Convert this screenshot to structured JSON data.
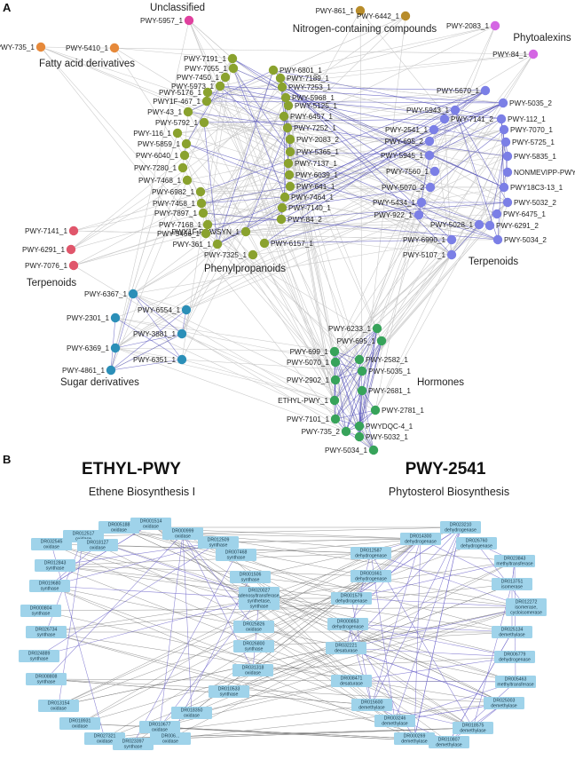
{
  "panel_a": {
    "label": "A",
    "colors": {
      "unclassified": "#e0409e",
      "fatty_acid": "#e6893a",
      "nitrogen": "#b88c2a",
      "phytoalexin": "#d466e3",
      "phenylpropanoid": "#8aa22e",
      "terpenoid_blue": "#7b7fe6",
      "terpenoid_red": "#e0566b",
      "sugar": "#2b8fb8",
      "hormone": "#37a35a",
      "edge_gray": "#c8c8c8",
      "edge_blue": "#4a47b8"
    },
    "group_labels": [
      {
        "id": "unclassified",
        "text": "Unclassified"
      },
      {
        "id": "nitrogen",
        "text": "Nitrogen-containing compounds"
      },
      {
        "id": "phytoalexins",
        "text": "Phytoalexins"
      },
      {
        "id": "fatty",
        "text": "Fatty acid derivatives"
      },
      {
        "id": "phenyl",
        "text": "Phenylpropanoids"
      },
      {
        "id": "terp_blue",
        "text": "Terpenoids"
      },
      {
        "id": "terp_red",
        "text": "Terpenoids"
      },
      {
        "id": "sugar",
        "text": "Sugar derivatives"
      },
      {
        "id": "hormones",
        "text": "Hormones"
      }
    ],
    "nodes": [
      {
        "label": "PWY-5957_1",
        "cat": "unclassified"
      },
      {
        "label": "PWY-861_1",
        "cat": "nitrogen"
      },
      {
        "label": "PWY-6442_1",
        "cat": "nitrogen"
      },
      {
        "label": "PWY-2083_1",
        "cat": "phytoalexin"
      },
      {
        "label": "PWY-84_1",
        "cat": "phytoalexin"
      },
      {
        "label": "PWY-735_1",
        "cat": "fatty_acid"
      },
      {
        "label": "PWY-5410_1",
        "cat": "fatty_acid"
      },
      {
        "label": "PWY-7191_1",
        "cat": "phenylpropanoid"
      },
      {
        "label": "PWY-7055_1",
        "cat": "phenylpropanoid"
      },
      {
        "label": "PWY-6801_1",
        "cat": "phenylpropanoid"
      },
      {
        "label": "PWY-7450_1",
        "cat": "phenylpropanoid"
      },
      {
        "label": "PWY-7189_1",
        "cat": "phenylpropanoid"
      },
      {
        "label": "PWY-5973_1",
        "cat": "phenylpropanoid"
      },
      {
        "label": "PWY-7253_1",
        "cat": "phenylpropanoid"
      },
      {
        "label": "PWY-5176_1",
        "cat": "phenylpropanoid"
      },
      {
        "label": "PWY-5968_1",
        "cat": "phenylpropanoid"
      },
      {
        "label": "PWY1F-467_1",
        "cat": "phenylpropanoid"
      },
      {
        "label": "PWY-5125_1",
        "cat": "phenylpropanoid"
      },
      {
        "label": "PWY-43_1",
        "cat": "phenylpropanoid"
      },
      {
        "label": "PWY-6457_1",
        "cat": "phenylpropanoid"
      },
      {
        "label": "PWY-5792_1",
        "cat": "phenylpropanoid"
      },
      {
        "label": "PWY-7252_1",
        "cat": "phenylpropanoid"
      },
      {
        "label": "PWY-116_1",
        "cat": "phenylpropanoid"
      },
      {
        "label": "PWY-2083_2",
        "cat": "phenylpropanoid"
      },
      {
        "label": "PWY-5859_1",
        "cat": "phenylpropanoid"
      },
      {
        "label": "PWY-5365_1",
        "cat": "phenylpropanoid"
      },
      {
        "label": "PWY-6040_1",
        "cat": "phenylpropanoid"
      },
      {
        "label": "PWY-7137_1",
        "cat": "phenylpropanoid"
      },
      {
        "label": "PWY-7280_1",
        "cat": "phenylpropanoid"
      },
      {
        "label": "PWY-6039_1",
        "cat": "phenylpropanoid"
      },
      {
        "label": "PWY-7468_1",
        "cat": "phenylpropanoid"
      },
      {
        "label": "PWY-641_1",
        "cat": "phenylpropanoid"
      },
      {
        "label": "PWY-6982_1",
        "cat": "phenylpropanoid"
      },
      {
        "label": "PWY-7464_1",
        "cat": "phenylpropanoid"
      },
      {
        "label": "PWY-7458_1",
        "cat": "phenylpropanoid"
      },
      {
        "label": "PWY-7140_1",
        "cat": "phenylpropanoid"
      },
      {
        "label": "PWY-7897_1",
        "cat": "phenylpropanoid"
      },
      {
        "label": "PWY-7168_1",
        "cat": "phenylpropanoid"
      },
      {
        "label": "PWY-84_2",
        "cat": "phenylpropanoid"
      },
      {
        "label": "PWY1F-FLAVSYN_1",
        "cat": "phenylpropanoid"
      },
      {
        "label": "PWY-5466_1",
        "cat": "phenylpropanoid"
      },
      {
        "label": "PWY-361_1",
        "cat": "phenylpropanoid"
      },
      {
        "label": "PWY-6157_1",
        "cat": "phenylpropanoid"
      },
      {
        "label": "PWY-7325_1",
        "cat": "phenylpropanoid"
      },
      {
        "label": "PWY-5670_1",
        "cat": "terpenoid_blue"
      },
      {
        "label": "PWY-5035_2",
        "cat": "terpenoid_blue"
      },
      {
        "label": "PWY-5943_1",
        "cat": "terpenoid_blue"
      },
      {
        "label": "PWY-7141_2",
        "cat": "terpenoid_blue"
      },
      {
        "label": "PWY-112_1",
        "cat": "terpenoid_blue"
      },
      {
        "label": "PWY-2541_1",
        "cat": "terpenoid_blue"
      },
      {
        "label": "PWY-7070_1",
        "cat": "terpenoid_blue"
      },
      {
        "label": "PWY-695_2",
        "cat": "terpenoid_blue"
      },
      {
        "label": "PWY-5725_1",
        "cat": "terpenoid_blue"
      },
      {
        "label": "PWY-5945_1",
        "cat": "terpenoid_blue"
      },
      {
        "label": "PWY-5835_1",
        "cat": "terpenoid_blue"
      },
      {
        "label": "PWY-7560_1",
        "cat": "terpenoid_blue"
      },
      {
        "label": "NONMEVIPP-PWY_1",
        "cat": "terpenoid_blue"
      },
      {
        "label": "PWY-5070_2",
        "cat": "terpenoid_blue"
      },
      {
        "label": "PWY18C3-13_1",
        "cat": "terpenoid_blue"
      },
      {
        "label": "PWY-5032_2",
        "cat": "terpenoid_blue"
      },
      {
        "label": "PWY-6475_1",
        "cat": "terpenoid_blue"
      },
      {
        "label": "PWY-5434_1",
        "cat": "terpenoid_blue"
      },
      {
        "label": "PWY-922_1",
        "cat": "terpenoid_blue"
      },
      {
        "label": "PWY-5028_1",
        "cat": "terpenoid_blue"
      },
      {
        "label": "PWY-6291_2",
        "cat": "terpenoid_blue"
      },
      {
        "label": "PWY-6990_1",
        "cat": "terpenoid_blue"
      },
      {
        "label": "PWY-5034_2",
        "cat": "terpenoid_blue"
      },
      {
        "label": "PWY-5107_1",
        "cat": "terpenoid_blue"
      },
      {
        "label": "PWY-7141_1",
        "cat": "terpenoid_red"
      },
      {
        "label": "PWY-6291_1",
        "cat": "terpenoid_red"
      },
      {
        "label": "PWY-7076_1",
        "cat": "terpenoid_red"
      },
      {
        "label": "PWY-6367_1",
        "cat": "sugar"
      },
      {
        "label": "PWY-6554_1",
        "cat": "sugar"
      },
      {
        "label": "PWY-2301_1",
        "cat": "sugar"
      },
      {
        "label": "PWY-3881_1",
        "cat": "sugar"
      },
      {
        "label": "PWY-6369_1",
        "cat": "sugar"
      },
      {
        "label": "PWY-6351_1",
        "cat": "sugar"
      },
      {
        "label": "PWY-4861_1",
        "cat": "sugar"
      },
      {
        "label": "PWY-6233_1",
        "cat": "hormone"
      },
      {
        "label": "PWY-695_1",
        "cat": "hormone"
      },
      {
        "label": "PWY-699_1",
        "cat": "hormone"
      },
      {
        "label": "PWY-5070_1",
        "cat": "hormone"
      },
      {
        "label": "PWY-2582_1",
        "cat": "hormone"
      },
      {
        "label": "PWY-5035_1",
        "cat": "hormone"
      },
      {
        "label": "PWY-2902_1",
        "cat": "hormone"
      },
      {
        "label": "ETHYL-PWY_1",
        "cat": "hormone"
      },
      {
        "label": "PWY-2681_1",
        "cat": "hormone"
      },
      {
        "label": "PWY-2781_1",
        "cat": "hormone"
      },
      {
        "label": "PWY-7101_1",
        "cat": "hormone"
      },
      {
        "label": "PWYDQC-4_1",
        "cat": "hormone"
      },
      {
        "label": "PWY-735_2",
        "cat": "hormone"
      },
      {
        "label": "PWY-5032_1",
        "cat": "hormone"
      },
      {
        "label": "PWY-5034_1",
        "cat": "hormone"
      }
    ]
  },
  "panel_b": {
    "label": "B",
    "colors": {
      "box": "#9fd3ea",
      "edge_gray": "#7a7a7a",
      "edge_blue": "#6b63c9"
    },
    "left": {
      "id": "ETHYL-PWY",
      "name": "Ethene Biosynthesis I",
      "genes": [
        {
          "id": "DR005188",
          "fn": "oxidase"
        },
        {
          "id": "DR001514",
          "fn": "oxidase"
        },
        {
          "id": "DR012517",
          "fn": "oxidase"
        },
        {
          "id": "DR018127",
          "fn": "oxidase"
        },
        {
          "id": "DR000999",
          "fn": "oxidase"
        },
        {
          "id": "DR032545",
          "fn": "oxidase"
        },
        {
          "id": "DR012509",
          "fn": "synthase"
        },
        {
          "id": "DR012843",
          "fn": "synthase"
        },
        {
          "id": "DR007468",
          "fn": "synthase"
        },
        {
          "id": "DR019680",
          "fn": "synthase"
        },
        {
          "id": "DR001506",
          "fn": "synthase"
        },
        {
          "id": "DR020027",
          "fn": "adenosyltransferase, synthetase, synthase"
        },
        {
          "id": "DR000804",
          "fn": "synthase"
        },
        {
          "id": "DR026734",
          "fn": "synthase"
        },
        {
          "id": "DR025826",
          "fn": "oxidase"
        },
        {
          "id": "DR026800",
          "fn": "synthase"
        },
        {
          "id": "DR024889",
          "fn": "synthase"
        },
        {
          "id": "DR031318",
          "fn": "oxidase"
        },
        {
          "id": "DR008808",
          "fn": "synthase"
        },
        {
          "id": "DR010533",
          "fn": "synthase"
        },
        {
          "id": "DR013154",
          "fn": "oxidase"
        },
        {
          "id": "DR018350",
          "fn": "oxidase"
        },
        {
          "id": "DR018931",
          "fn": "oxidase"
        },
        {
          "id": "DR010677",
          "fn": "oxidase"
        },
        {
          "id": "DR027321",
          "fn": "oxidase"
        },
        {
          "id": "DR023397",
          "fn": "synthase"
        },
        {
          "id": "DR006...",
          "fn": "oxidase"
        }
      ]
    },
    "right": {
      "id": "PWY-2541",
      "name": "Phytosterol Biosynthesis",
      "genes": [
        {
          "id": "DR023210",
          "fn": "dehydrogenase"
        },
        {
          "id": "DR014300",
          "fn": "dehydrogenase"
        },
        {
          "id": "DR026760",
          "fn": "dehydrogenase"
        },
        {
          "id": "DR012587",
          "fn": "dehydrogenase"
        },
        {
          "id": "DR023843",
          "fn": "methyltransferase"
        },
        {
          "id": "DR001661",
          "fn": "dehydrogenase"
        },
        {
          "id": "DR013751",
          "fn": "isomerase"
        },
        {
          "id": "DR001579",
          "fn": "dehydrogenase"
        },
        {
          "id": "DR012272",
          "fn": "isomerase, cycloisomerase"
        },
        {
          "id": "DR000853",
          "fn": "dehydrogenase"
        },
        {
          "id": "DR025134",
          "fn": "demethylase"
        },
        {
          "id": "DR032221",
          "fn": "desaturase"
        },
        {
          "id": "DR006779",
          "fn": "dehydrogenase"
        },
        {
          "id": "DR008471",
          "fn": "desaturase"
        },
        {
          "id": "DR005463",
          "fn": "methyltransferase"
        },
        {
          "id": "DR015600",
          "fn": "demethylase"
        },
        {
          "id": "DR025003",
          "fn": "demethylase"
        },
        {
          "id": "DR003246",
          "fn": "demethylase"
        },
        {
          "id": "DR018575",
          "fn": "demethylase"
        },
        {
          "id": "DR000269",
          "fn": "demethylase"
        },
        {
          "id": "DR010807",
          "fn": "demethylase"
        }
      ]
    }
  }
}
